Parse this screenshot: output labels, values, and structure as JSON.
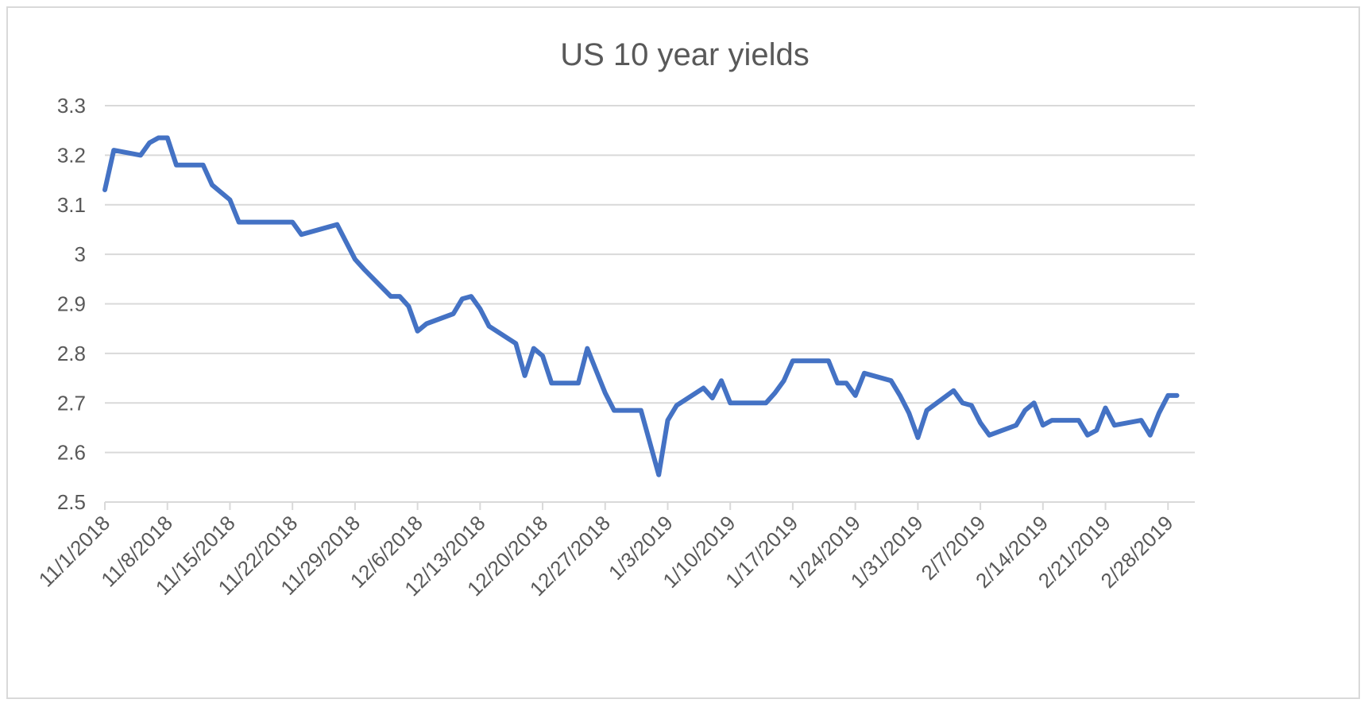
{
  "chart_data": {
    "type": "line",
    "title": "US 10 year yields",
    "xlabel": "",
    "ylabel": "",
    "ylim": [
      2.5,
      3.3
    ],
    "yticks": [
      "3.3",
      "3.2",
      "3.1",
      "3",
      "2.9",
      "2.8",
      "2.7",
      "2.6",
      "2.5"
    ],
    "xlim": [
      "2018-11-01",
      "2019-03-03"
    ],
    "xticks": [
      "11/1/2018",
      "11/8/2018",
      "11/15/2018",
      "11/22/2018",
      "11/29/2018",
      "12/6/2018",
      "12/13/2018",
      "12/20/2018",
      "12/27/2018",
      "1/3/2019",
      "1/10/2019",
      "1/17/2019",
      "1/24/2019",
      "1/31/2019",
      "2/7/2019",
      "2/14/2019",
      "2/21/2019",
      "2/28/2019"
    ],
    "grid": true,
    "legend": "none",
    "colors": {
      "line": "#4472c4",
      "grid": "#d9d9d9",
      "text": "#595959",
      "border": "#d9d9d9"
    },
    "series": [
      {
        "x": [
          "2018-11-01",
          "2018-11-02",
          "2018-11-05",
          "2018-11-06",
          "2018-11-07",
          "2018-11-08",
          "2018-11-09",
          "2018-11-12",
          "2018-11-13",
          "2018-11-14",
          "2018-11-15",
          "2018-11-16",
          "2018-11-19",
          "2018-11-20",
          "2018-11-21",
          "2018-11-22",
          "2018-11-23",
          "2018-11-26",
          "2018-11-27",
          "2018-11-28",
          "2018-11-29",
          "2018-11-30",
          "2018-12-03",
          "2018-12-04",
          "2018-12-05",
          "2018-12-06",
          "2018-12-07",
          "2018-12-10",
          "2018-12-11",
          "2018-12-12",
          "2018-12-13",
          "2018-12-14",
          "2018-12-17",
          "2018-12-18",
          "2018-12-19",
          "2018-12-20",
          "2018-12-21",
          "2018-12-24",
          "2018-12-25",
          "2018-12-26",
          "2018-12-27",
          "2018-12-28",
          "2018-12-31",
          "2019-01-01",
          "2019-01-02",
          "2019-01-03",
          "2019-01-04",
          "2019-01-07",
          "2019-01-08",
          "2019-01-09",
          "2019-01-10",
          "2019-01-11",
          "2019-01-14",
          "2019-01-15",
          "2019-01-16",
          "2019-01-17",
          "2019-01-18",
          "2019-01-21",
          "2019-01-22",
          "2019-01-23",
          "2019-01-24",
          "2019-01-25",
          "2019-01-28",
          "2019-01-29",
          "2019-01-30",
          "2019-01-31",
          "2019-02-01",
          "2019-02-04",
          "2019-02-05",
          "2019-02-06",
          "2019-02-07",
          "2019-02-08",
          "2019-02-11",
          "2019-02-12",
          "2019-02-13",
          "2019-02-14",
          "2019-02-15",
          "2019-02-18",
          "2019-02-19",
          "2019-02-20",
          "2019-02-21",
          "2019-02-22",
          "2019-02-25",
          "2019-02-26",
          "2019-02-27",
          "2019-02-28",
          "2019-03-01"
        ],
        "y": [
          3.13,
          3.21,
          3.2,
          3.225,
          3.235,
          3.235,
          3.18,
          3.18,
          3.14,
          3.125,
          3.11,
          3.065,
          3.065,
          3.065,
          3.065,
          3.065,
          3.04,
          3.055,
          3.06,
          3.025,
          2.99,
          2.97,
          2.915,
          2.915,
          2.895,
          2.845,
          2.86,
          2.88,
          2.91,
          2.915,
          2.89,
          2.855,
          2.82,
          2.755,
          2.81,
          2.795,
          2.74,
          2.74,
          2.81,
          2.765,
          2.72,
          2.685,
          2.685,
          2.62,
          2.555,
          2.665,
          2.695,
          2.73,
          2.71,
          2.745,
          2.7,
          2.7,
          2.7,
          2.72,
          2.745,
          2.785,
          2.785,
          2.785,
          2.74,
          2.74,
          2.715,
          2.76,
          2.745,
          2.715,
          2.68,
          2.63,
          2.685,
          2.725,
          2.7,
          2.695,
          2.66,
          2.635,
          2.655,
          2.685,
          2.7,
          2.655,
          2.665,
          2.665,
          2.635,
          2.645,
          2.69,
          2.655,
          2.665,
          2.635,
          2.68,
          2.715,
          2.715
        ]
      }
    ]
  }
}
